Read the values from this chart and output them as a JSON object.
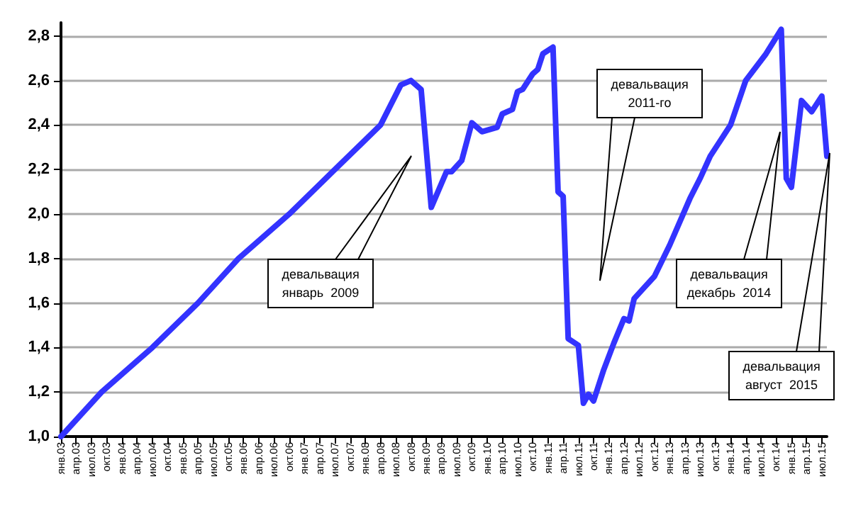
{
  "chart_data": {
    "type": "line",
    "color": "#3333ff",
    "grid": "y",
    "marker": "none",
    "line_style": "solid",
    "x": [
      "2003-01",
      "2003-09",
      "2004-07",
      "2005-04",
      "2005-12",
      "2006-10",
      "2007-07",
      "2008-04",
      "2008-08",
      "2008-10",
      "2008-12",
      "2009-02",
      "2009-05",
      "2009-06",
      "2009-08",
      "2009-10",
      "2009-12",
      "2010-03",
      "2010-04",
      "2010-06",
      "2010-07",
      "2010-08",
      "2010-10",
      "2010-11",
      "2010-12",
      "2011-02",
      "2011-03",
      "2011-04",
      "2011-05",
      "2011-07",
      "2011-08",
      "2011-09",
      "2011-10",
      "2011-11",
      "2011-12",
      "2012-02",
      "2012-04",
      "2012-05",
      "2012-06",
      "2012-08",
      "2012-10",
      "2013-01",
      "2013-05",
      "2013-07",
      "2013-09",
      "2014-01",
      "2014-04",
      "2014-08",
      "2014-11",
      "2014-12",
      "2015-01",
      "2015-03",
      "2015-05",
      "2015-07",
      "2015-08"
    ],
    "values": [
      1.0,
      1.2,
      1.4,
      1.6,
      1.8,
      2.0,
      2.2,
      2.4,
      2.58,
      2.6,
      2.56,
      2.03,
      2.19,
      2.19,
      2.24,
      2.41,
      2.37,
      2.39,
      2.45,
      2.47,
      2.55,
      2.56,
      2.63,
      2.65,
      2.72,
      2.75,
      2.1,
      2.08,
      1.44,
      1.41,
      1.15,
      1.19,
      1.16,
      1.23,
      1.3,
      1.42,
      1.53,
      1.52,
      1.62,
      1.67,
      1.72,
      1.86,
      2.07,
      2.16,
      2.26,
      2.4,
      2.6,
      2.72,
      2.83,
      2.16,
      2.12,
      2.51,
      2.46,
      2.53,
      2.26
    ],
    "xlim": [
      "2003-01",
      "2015-08"
    ],
    "ylim": [
      1.0,
      2.86
    ],
    "yticks": [
      {
        "value": 1.0,
        "label": "1,0"
      },
      {
        "value": 1.2,
        "label": "1,2"
      },
      {
        "value": 1.4,
        "label": "1,4"
      },
      {
        "value": 1.6,
        "label": "1,6"
      },
      {
        "value": 1.8,
        "label": "1,8"
      },
      {
        "value": 2.0,
        "label": "2,0"
      },
      {
        "value": 2.2,
        "label": "2,2"
      },
      {
        "value": 2.4,
        "label": "2,4"
      },
      {
        "value": 2.6,
        "label": "2,6"
      },
      {
        "value": 2.8,
        "label": "2,8"
      }
    ],
    "xticks": [
      {
        "value": "2003-01",
        "label": "янв.03"
      },
      {
        "value": "2003-04",
        "label": "апр.03"
      },
      {
        "value": "2003-07",
        "label": "июл.03"
      },
      {
        "value": "2003-10",
        "label": "окт.03"
      },
      {
        "value": "2004-01",
        "label": "янв.04"
      },
      {
        "value": "2004-04",
        "label": "апр.04"
      },
      {
        "value": "2004-07",
        "label": "июл.04"
      },
      {
        "value": "2004-10",
        "label": "окт.04"
      },
      {
        "value": "2005-01",
        "label": "янв.05"
      },
      {
        "value": "2005-04",
        "label": "апр.05"
      },
      {
        "value": "2005-07",
        "label": "июл.05"
      },
      {
        "value": "2005-10",
        "label": "окт.05"
      },
      {
        "value": "2006-01",
        "label": "янв.06"
      },
      {
        "value": "2006-04",
        "label": "апр.06"
      },
      {
        "value": "2006-07",
        "label": "июл.06"
      },
      {
        "value": "2006-10",
        "label": "окт.06"
      },
      {
        "value": "2007-01",
        "label": "янв.07"
      },
      {
        "value": "2007-04",
        "label": "апр.07"
      },
      {
        "value": "2007-07",
        "label": "июл.07"
      },
      {
        "value": "2007-10",
        "label": "окт.07"
      },
      {
        "value": "2008-01",
        "label": "янв.08"
      },
      {
        "value": "2008-04",
        "label": "апр.08"
      },
      {
        "value": "2008-07",
        "label": "июл.08"
      },
      {
        "value": "2008-10",
        "label": "окт.08"
      },
      {
        "value": "2009-01",
        "label": "янв.09"
      },
      {
        "value": "2009-04",
        "label": "апр.09"
      },
      {
        "value": "2009-07",
        "label": "июл.09"
      },
      {
        "value": "2009-10",
        "label": "окт.09"
      },
      {
        "value": "2010-01",
        "label": "янв.10"
      },
      {
        "value": "2010-04",
        "label": "апр.10"
      },
      {
        "value": "2010-07",
        "label": "июл.10"
      },
      {
        "value": "2010-10",
        "label": "окт.10"
      },
      {
        "value": "2011-01",
        "label": "янв.11"
      },
      {
        "value": "2011-04",
        "label": "апр.11"
      },
      {
        "value": "2011-07",
        "label": "июл.11"
      },
      {
        "value": "2011-10",
        "label": "окт.11"
      },
      {
        "value": "2012-01",
        "label": "янв.12"
      },
      {
        "value": "2012-04",
        "label": "апр.12"
      },
      {
        "value": "2012-07",
        "label": "июл.12"
      },
      {
        "value": "2012-10",
        "label": "окт.12"
      },
      {
        "value": "2013-01",
        "label": "янв.13"
      },
      {
        "value": "2013-04",
        "label": "апр.13"
      },
      {
        "value": "2013-07",
        "label": "июл.13"
      },
      {
        "value": "2013-10",
        "label": "окт.13"
      },
      {
        "value": "2014-01",
        "label": "янв.14"
      },
      {
        "value": "2014-04",
        "label": "апр.14"
      },
      {
        "value": "2014-07",
        "label": "июл.14"
      },
      {
        "value": "2014-10",
        "label": "окт.14"
      },
      {
        "value": "2015-01",
        "label": "янв.15"
      },
      {
        "value": "2015-04",
        "label": "апр.15"
      },
      {
        "value": "2015-07",
        "label": "июл.15"
      }
    ],
    "annotations": [
      "девальвация\nянварь  2009",
      "девальвация\n2011-го",
      "девальвация\nдекабрь  2014",
      "девальвация\nавгуст  2015"
    ]
  }
}
